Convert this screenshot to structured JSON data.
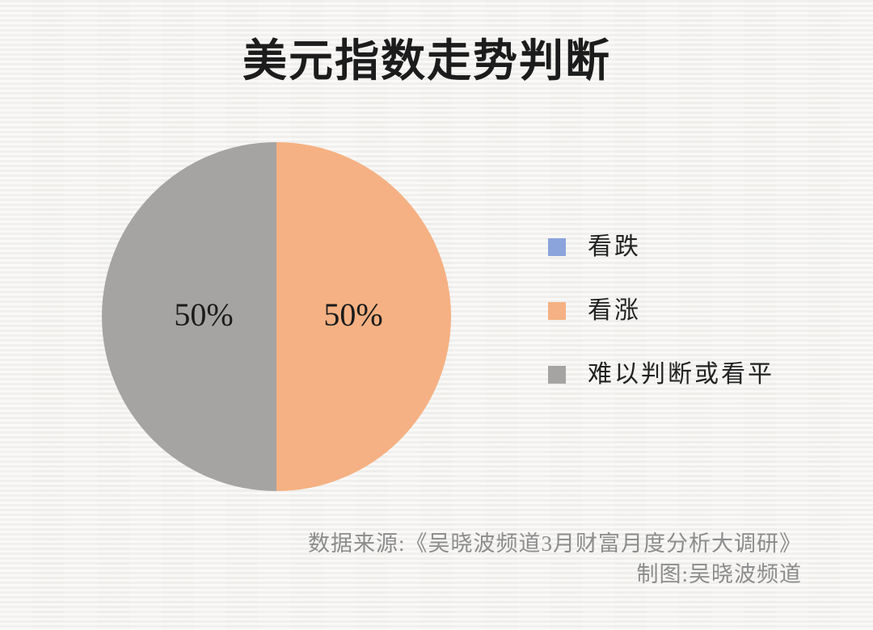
{
  "page": {
    "background_color": "#f4f3f1"
  },
  "title": "美元指数走势判断",
  "chart_data": {
    "type": "pie",
    "title": "美元指数走势判断",
    "segments": [
      {
        "label": "看跌",
        "value": 0,
        "color": "#8BA4DB"
      },
      {
        "label": "看涨",
        "value": 50,
        "color": "#F5B183"
      },
      {
        "label": "难以判断或看平",
        "value": 50,
        "color": "#A5A4A3"
      }
    ],
    "data_labels": [
      "50%",
      "50%"
    ],
    "legend_position": "right",
    "start_angle_deg": 0,
    "direction": "clockwise"
  },
  "footer": {
    "source": "数据来源:《吴晓波频道3月财富月度分析大调研》",
    "credit": "制图:吴晓波频道"
  }
}
